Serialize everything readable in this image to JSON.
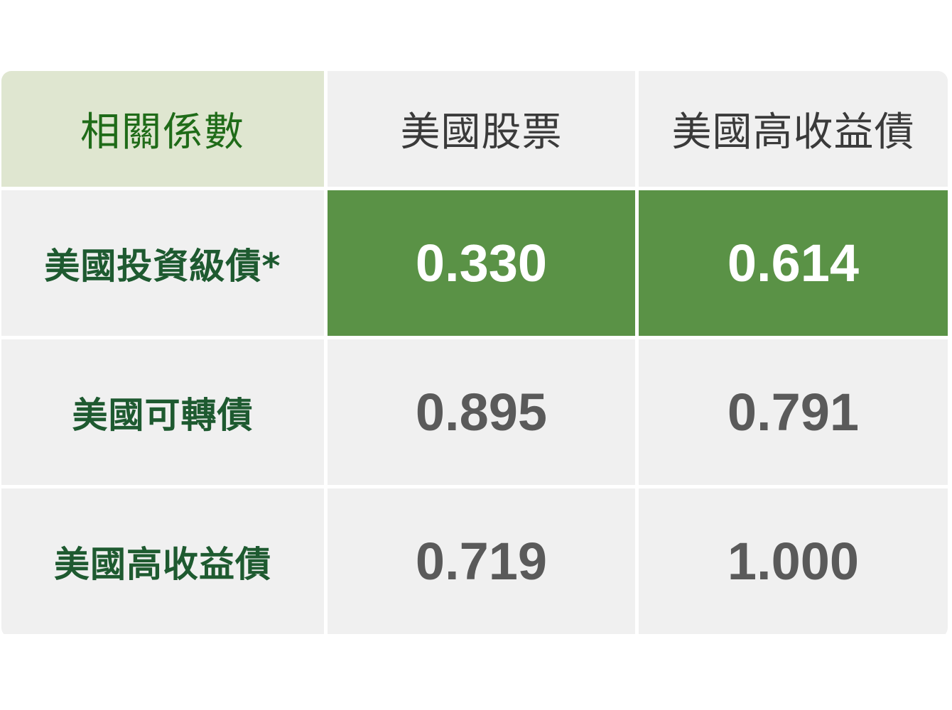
{
  "table": {
    "corner_label": "相關係數",
    "columns": [
      "美國股票",
      "美國高收益債"
    ],
    "rows": [
      {
        "label": "美國投資級債*",
        "values": [
          "0.330",
          "0.614"
        ],
        "highlighted": true
      },
      {
        "label": "美國可轉債",
        "values": [
          "0.895",
          "0.791"
        ],
        "highlighted": false
      },
      {
        "label": "美國高收益債",
        "values": [
          "0.719",
          "1.000"
        ],
        "highlighted": false
      }
    ]
  },
  "colors": {
    "corner_background": "#dfe6d0",
    "corner_text": "#1f6b18",
    "highlight_background": "#5a9246",
    "highlight_text": "#ffffff",
    "cell_background": "#f0f0f0",
    "row_header_text": "#1e5a30",
    "value_text": "#5a5a5a"
  }
}
